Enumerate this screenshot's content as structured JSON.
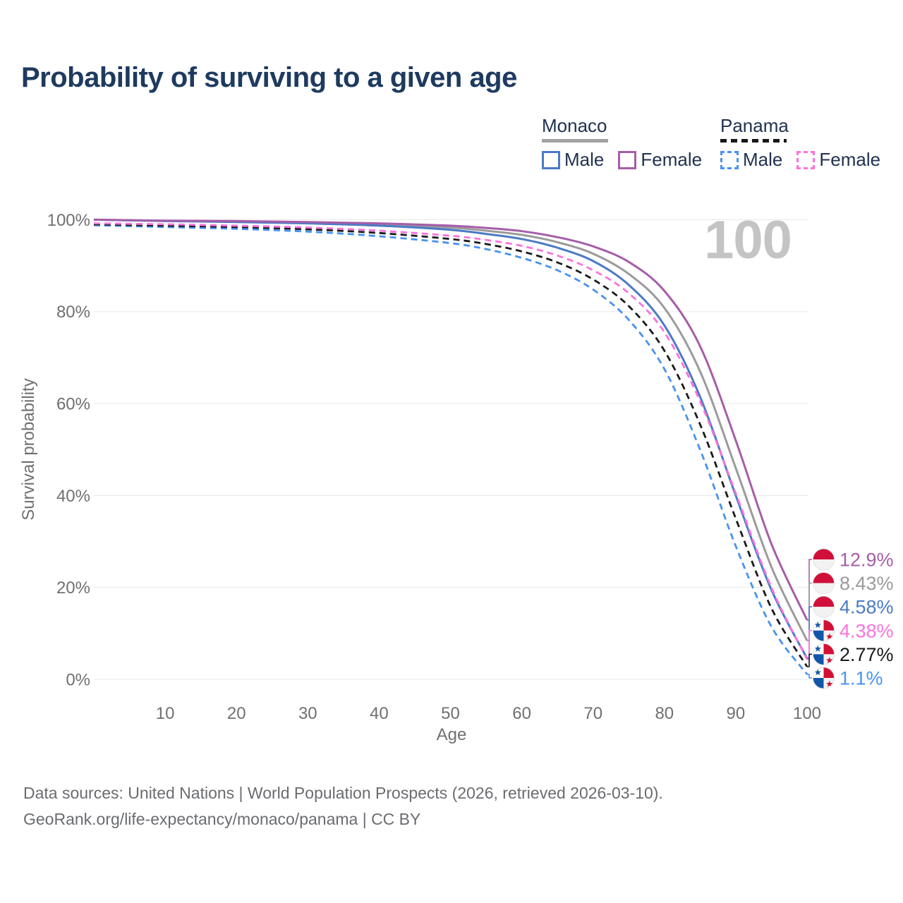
{
  "header": {
    "title": "Probability of surviving to a given age"
  },
  "legend": {
    "groups": [
      {
        "label": "Monaco",
        "line_style": "solid",
        "underline_color": "#A2A2A2",
        "items": [
          {
            "label": "Male",
            "color": "#4B7BC5"
          },
          {
            "label": "Female",
            "color": "#A65DA8"
          }
        ]
      },
      {
        "label": "Panama",
        "line_style": "dashed",
        "underline_color": "#161616",
        "items": [
          {
            "label": "Male",
            "color": "#4793F0"
          },
          {
            "label": "Female",
            "color": "#FC72DD"
          }
        ]
      }
    ]
  },
  "chart_data": {
    "type": "line",
    "title": "Probability of surviving to a given age",
    "xlabel": "Age",
    "ylabel": "Survival probability",
    "xlim": [
      0,
      100
    ],
    "ylim": [
      0,
      100
    ],
    "grid": true,
    "annotation": "100",
    "x_ticks": [
      10,
      20,
      30,
      40,
      50,
      60,
      70,
      80,
      90,
      100
    ],
    "y_ticks": [
      {
        "value": 0,
        "label": "0%"
      },
      {
        "value": 20,
        "label": "20%"
      },
      {
        "value": 40,
        "label": "40%"
      },
      {
        "value": 60,
        "label": "60%"
      },
      {
        "value": 80,
        "label": "80%"
      },
      {
        "value": 100,
        "label": "100%"
      }
    ],
    "series": [
      {
        "id": "monaco-female",
        "name": "Monaco Female",
        "country": "Monaco",
        "sex": "Female",
        "color": "#A65DA8",
        "dash": false,
        "flag": "monaco",
        "end_label": "12.9%",
        "points": [
          [
            0,
            100
          ],
          [
            10,
            99.8
          ],
          [
            20,
            99.7
          ],
          [
            30,
            99.5
          ],
          [
            40,
            99.2
          ],
          [
            50,
            98.7
          ],
          [
            55,
            98.2
          ],
          [
            60,
            97.5
          ],
          [
            65,
            96.2
          ],
          [
            70,
            94.2
          ],
          [
            75,
            90.8
          ],
          [
            80,
            84.5
          ],
          [
            85,
            72.5
          ],
          [
            90,
            52
          ],
          [
            95,
            29.5
          ],
          [
            100,
            12.9
          ]
        ]
      },
      {
        "id": "monaco-total",
        "name": "Monaco",
        "country": "Monaco",
        "sex": "Both",
        "color": "#9B9B9B",
        "dash": false,
        "flag": "monaco",
        "end_label": "8.43%",
        "points": [
          [
            0,
            100
          ],
          [
            10,
            99.75
          ],
          [
            20,
            99.6
          ],
          [
            30,
            99.4
          ],
          [
            40,
            99
          ],
          [
            50,
            98.3
          ],
          [
            55,
            97.6
          ],
          [
            60,
            96.7
          ],
          [
            65,
            95.1
          ],
          [
            70,
            92.6
          ],
          [
            75,
            88.2
          ],
          [
            80,
            80.8
          ],
          [
            85,
            67
          ],
          [
            90,
            46
          ],
          [
            95,
            24.5
          ],
          [
            100,
            8.43
          ]
        ]
      },
      {
        "id": "monaco-male",
        "name": "Monaco Male",
        "country": "Monaco",
        "sex": "Male",
        "color": "#4B7BC5",
        "dash": false,
        "flag": "monaco",
        "end_label": "4.58%",
        "points": [
          [
            0,
            100
          ],
          [
            10,
            99.7
          ],
          [
            20,
            99.5
          ],
          [
            30,
            99.2
          ],
          [
            40,
            98.7
          ],
          [
            50,
            97.8
          ],
          [
            55,
            96.9
          ],
          [
            60,
            95.8
          ],
          [
            65,
            93.9
          ],
          [
            70,
            91
          ],
          [
            75,
            85.8
          ],
          [
            80,
            77
          ],
          [
            85,
            61.5
          ],
          [
            90,
            40
          ],
          [
            95,
            19.5
          ],
          [
            100,
            4.58
          ]
        ]
      },
      {
        "id": "panama-female",
        "name": "Panama Female",
        "country": "Panama",
        "sex": "Female",
        "color": "#FC72DD",
        "dash": true,
        "flag": "panama",
        "end_label": "4.38%",
        "points": [
          [
            0,
            99.2
          ],
          [
            10,
            99
          ],
          [
            20,
            98.7
          ],
          [
            30,
            98.3
          ],
          [
            40,
            97.6
          ],
          [
            50,
            96.5
          ],
          [
            55,
            95.6
          ],
          [
            60,
            94.3
          ],
          [
            65,
            92.2
          ],
          [
            70,
            89
          ],
          [
            75,
            84
          ],
          [
            80,
            75.5
          ],
          [
            85,
            60.5
          ],
          [
            90,
            40.5
          ],
          [
            95,
            20
          ],
          [
            100,
            4.38
          ]
        ]
      },
      {
        "id": "panama-total",
        "name": "Panama",
        "country": "Panama",
        "sex": "Both",
        "color": "#1A1A1A",
        "dash": true,
        "flag": "panama",
        "end_label": "2.77%",
        "points": [
          [
            0,
            99
          ],
          [
            10,
            98.7
          ],
          [
            20,
            98.4
          ],
          [
            30,
            97.9
          ],
          [
            40,
            97.1
          ],
          [
            50,
            95.8
          ],
          [
            55,
            94.7
          ],
          [
            60,
            93.1
          ],
          [
            65,
            90.7
          ],
          [
            70,
            87
          ],
          [
            75,
            81.2
          ],
          [
            80,
            71.5
          ],
          [
            85,
            55.5
          ],
          [
            90,
            35
          ],
          [
            95,
            15.5
          ],
          [
            100,
            2.77
          ]
        ]
      },
      {
        "id": "panama-male",
        "name": "Panama Male",
        "country": "Panama",
        "sex": "Male",
        "color": "#4793F0",
        "dash": true,
        "flag": "panama",
        "end_label": "1.1%",
        "points": [
          [
            0,
            98.8
          ],
          [
            10,
            98.4
          ],
          [
            20,
            98
          ],
          [
            30,
            97.4
          ],
          [
            40,
            96.4
          ],
          [
            50,
            94.9
          ],
          [
            55,
            93.6
          ],
          [
            60,
            91.7
          ],
          [
            65,
            89
          ],
          [
            70,
            84.8
          ],
          [
            75,
            78.2
          ],
          [
            80,
            67.5
          ],
          [
            85,
            50
          ],
          [
            90,
            29
          ],
          [
            95,
            11.5
          ],
          [
            100,
            1.1
          ]
        ]
      }
    ],
    "flag_colors": {
      "monaco_red": "#D0103A",
      "monaco_white": "#F2F2F2",
      "panama_red": "#D21034",
      "panama_blue": "#1256A8",
      "panama_white": "#FFFFFF"
    },
    "grid_color": "#E8E8E8",
    "watermark_color": "#C4C4C4"
  },
  "footer": {
    "line1": "Data sources: United Nations | World Population Prospects (2026, retrieved 2026-03-10).",
    "line2": "GeoRank.org/life-expectancy/monaco/panama | CC BY"
  }
}
